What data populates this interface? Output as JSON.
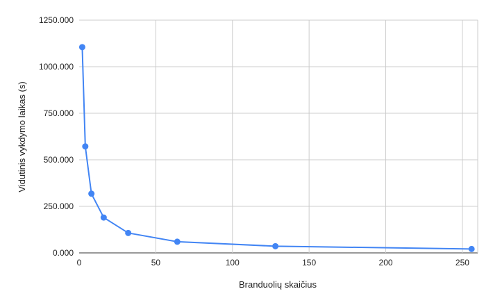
{
  "chart_data": {
    "type": "line",
    "title": "",
    "xlabel": "Branduolių skaičius",
    "ylabel": "Vidutinis vykdymo laikas (s)",
    "xlim": [
      0,
      260
    ],
    "ylim": [
      0,
      1250
    ],
    "x_ticks": [
      "0",
      "50",
      "100",
      "150",
      "200",
      "250"
    ],
    "y_ticks": [
      "0.000",
      "250.000",
      "500.000",
      "750.000",
      "1000.000",
      "1250.000"
    ],
    "grid": true,
    "legend": "none",
    "series": [
      {
        "color": "#4285f4",
        "x": [
          2,
          4,
          8,
          16,
          32,
          64,
          128,
          256
        ],
        "y": [
          1105,
          572,
          318,
          190,
          107,
          60,
          36,
          21
        ]
      }
    ]
  }
}
